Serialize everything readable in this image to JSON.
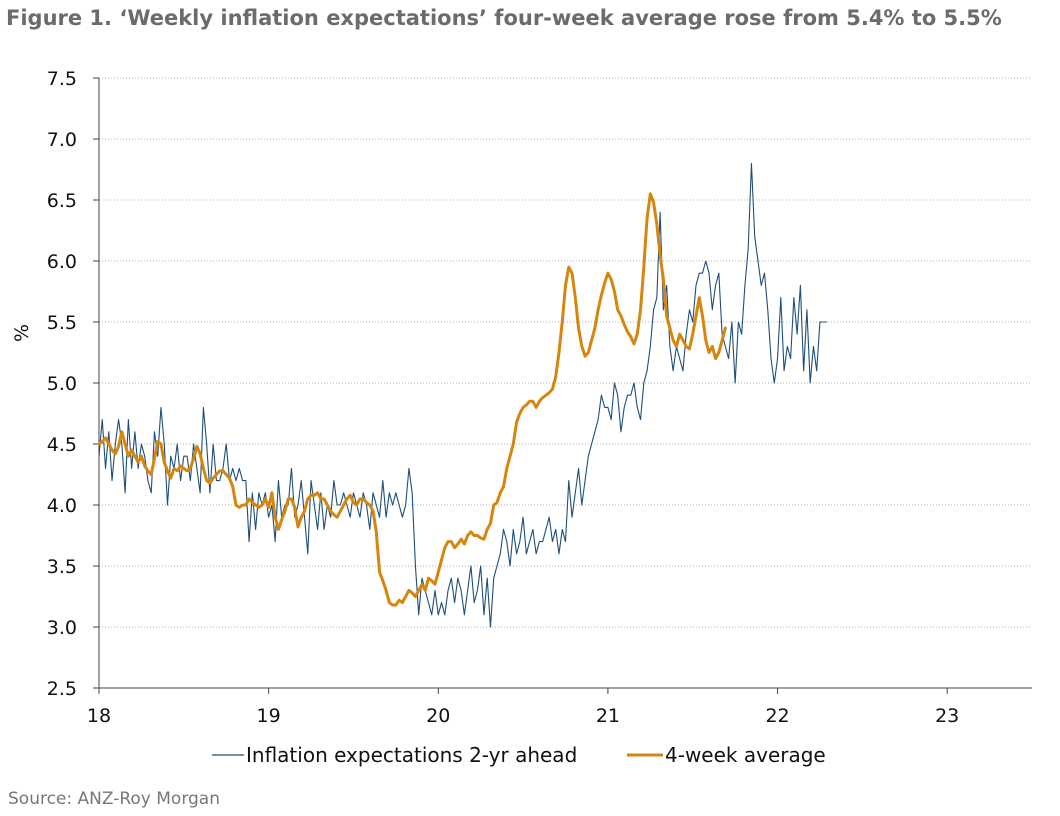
{
  "figure": {
    "title": "Figure 1. ‘Weekly inflation expectations’ four-week average rose from 5.4% to 5.5%",
    "source": "Source: ANZ-Roy Morgan"
  },
  "chart_data": {
    "type": "line",
    "ylabel": "%",
    "xlabel": "",
    "ylim": [
      2.5,
      7.5
    ],
    "yticks": [
      "2.5",
      "3.0",
      "3.5",
      "4.0",
      "4.5",
      "5.0",
      "5.5",
      "6.0",
      "6.5",
      "7.0",
      "7.5"
    ],
    "xlim": [
      18,
      23.5
    ],
    "xticks": [
      "18",
      "19",
      "20",
      "21",
      "22",
      "23"
    ],
    "grid": "horizontal dotted",
    "legend": "bottom-center",
    "colors": {
      "weekly": "#1f4e79",
      "average": "#d6860f",
      "grid": "#a9b3bd",
      "axis": "#444444"
    },
    "series": [
      {
        "name": "Inflation expectations 2-yr ahead",
        "x_start": 18,
        "step_weeks": 1,
        "values": [
          4.4,
          4.7,
          4.3,
          4.6,
          4.2,
          4.5,
          4.7,
          4.5,
          4.1,
          4.7,
          4.3,
          4.6,
          4.3,
          4.5,
          4.4,
          4.2,
          4.1,
          4.6,
          4.4,
          4.8,
          4.5,
          4.0,
          4.4,
          4.3,
          4.5,
          4.2,
          4.4,
          4.4,
          4.2,
          4.5,
          4.3,
          4.1,
          4.8,
          4.5,
          4.1,
          4.5,
          4.2,
          4.2,
          4.3,
          4.5,
          4.2,
          4.3,
          4.2,
          4.3,
          4.2,
          4.2,
          3.7,
          4.1,
          3.8,
          4.1,
          4.0,
          4.1,
          3.9,
          4.0,
          3.7,
          4.2,
          3.9,
          4.0,
          4.0,
          4.3,
          3.9,
          4.0,
          4.2,
          3.9,
          3.6,
          4.2,
          4.0,
          3.8,
          4.1,
          3.8,
          4.0,
          3.9,
          4.2,
          4.0,
          4.0,
          4.1,
          4.0,
          3.9,
          4.1,
          4.0,
          3.9,
          4.1,
          4.0,
          3.8,
          4.1,
          4.0,
          3.9,
          4.2,
          3.9,
          4.1,
          4.0,
          4.1,
          4.0,
          3.9,
          4.0,
          4.3,
          4.1,
          3.5,
          3.1,
          3.4,
          3.3,
          3.2,
          3.1,
          3.3,
          3.1,
          3.2,
          3.1,
          3.3,
          3.4,
          3.2,
          3.4,
          3.3,
          3.1,
          3.3,
          3.5,
          3.2,
          3.3,
          3.5,
          3.1,
          3.4,
          3.0,
          3.4,
          3.5,
          3.6,
          3.8,
          3.7,
          3.5,
          3.8,
          3.6,
          3.7,
          3.9,
          3.6,
          3.7,
          3.8,
          3.6,
          3.7,
          3.7,
          3.8,
          3.9,
          3.7,
          3.8,
          3.6,
          3.8,
          3.7,
          4.2,
          3.9,
          4.1,
          4.3,
          4.0,
          4.2,
          4.4,
          4.5,
          4.6,
          4.7,
          4.9,
          4.8,
          4.8,
          4.7,
          5.0,
          4.9,
          4.6,
          4.8,
          4.9,
          4.9,
          5.0,
          4.8,
          4.7,
          5.0,
          5.1,
          5.3,
          5.6,
          5.7,
          6.4,
          5.6,
          5.8,
          5.3,
          5.1,
          5.3,
          5.2,
          5.1,
          5.4,
          5.6,
          5.5,
          5.8,
          5.9,
          5.9,
          6.0,
          5.9,
          5.6,
          5.8,
          5.9,
          5.4,
          5.3,
          5.2,
          5.5,
          5.0,
          5.5,
          5.4,
          5.8,
          6.1,
          6.8,
          6.2,
          6.0,
          5.8,
          5.9,
          5.6,
          5.2,
          5.0,
          5.2,
          5.7,
          5.1,
          5.3,
          5.2,
          5.7,
          5.4,
          5.8,
          5.1,
          5.6,
          5.0,
          5.3,
          5.1,
          5.5,
          5.5,
          5.5
        ]
      },
      {
        "name": "4-week average",
        "x_start": 18,
        "step_weeks": 1,
        "values": [
          4.5,
          4.52,
          4.55,
          4.5,
          4.45,
          4.42,
          4.48,
          4.6,
          4.5,
          4.4,
          4.45,
          4.4,
          4.35,
          4.4,
          4.32,
          4.28,
          4.25,
          4.38,
          4.52,
          4.5,
          4.35,
          4.28,
          4.22,
          4.3,
          4.28,
          4.32,
          4.3,
          4.28,
          4.3,
          4.38,
          4.48,
          4.42,
          4.3,
          4.2,
          4.18,
          4.22,
          4.25,
          4.28,
          4.28,
          4.25,
          4.22,
          4.15,
          4.0,
          3.98,
          4.0,
          4.0,
          4.05,
          4.02,
          4.0,
          3.98,
          4.0,
          4.05,
          3.98,
          4.1,
          3.9,
          3.8,
          3.88,
          3.95,
          4.05,
          4.05,
          3.98,
          3.82,
          3.9,
          3.95,
          4.05,
          4.08,
          4.08,
          4.1,
          4.05,
          4.05,
          4.0,
          3.95,
          3.92,
          3.9,
          3.95,
          4.0,
          4.05,
          4.08,
          4.02,
          4.0,
          4.05,
          4.05,
          4.02,
          4.0,
          3.95,
          3.78,
          3.45,
          3.38,
          3.3,
          3.2,
          3.18,
          3.18,
          3.22,
          3.2,
          3.25,
          3.3,
          3.28,
          3.25,
          3.3,
          3.35,
          3.3,
          3.4,
          3.38,
          3.35,
          3.45,
          3.55,
          3.65,
          3.7,
          3.7,
          3.65,
          3.68,
          3.72,
          3.68,
          3.75,
          3.78,
          3.75,
          3.75,
          3.73,
          3.72,
          3.8,
          3.85,
          4.0,
          4.02,
          4.1,
          4.15,
          4.3,
          4.4,
          4.5,
          4.68,
          4.75,
          4.8,
          4.82,
          4.85,
          4.85,
          4.8,
          4.85,
          4.88,
          4.9,
          4.92,
          4.95,
          5.05,
          5.25,
          5.5,
          5.8,
          5.95,
          5.9,
          5.7,
          5.45,
          5.3,
          5.22,
          5.25,
          5.35,
          5.45,
          5.6,
          5.72,
          5.82,
          5.9,
          5.85,
          5.75,
          5.6,
          5.55,
          5.48,
          5.42,
          5.38,
          5.32,
          5.4,
          5.6,
          5.95,
          6.35,
          6.55,
          6.48,
          6.3,
          6.05,
          5.85,
          5.55,
          5.45,
          5.35,
          5.3,
          5.4,
          5.35,
          5.3,
          5.28,
          5.4,
          5.55,
          5.7,
          5.55,
          5.35,
          5.25,
          5.3,
          5.2,
          5.25,
          5.35,
          5.45
        ]
      }
    ]
  }
}
